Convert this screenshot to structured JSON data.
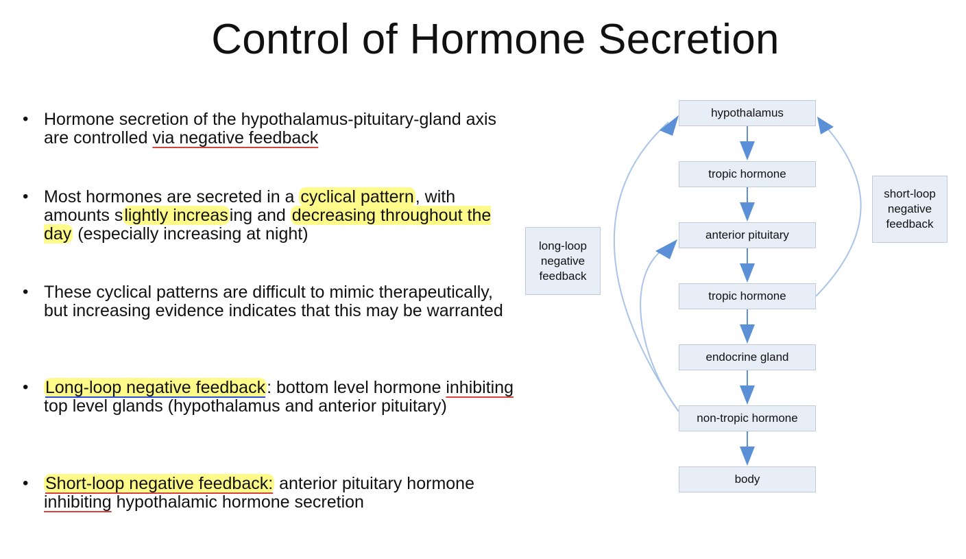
{
  "title": "Control of Hormone Secretion",
  "bullets": [
    {
      "parts": [
        {
          "text": "Hormone secretion of the hypothalamus-pituitary-gland axis are controlled "
        },
        {
          "text": "via negative feedback",
          "style": "ul-red"
        }
      ]
    },
    {
      "parts": [
        {
          "text": "Most hormones are secreted in a "
        },
        {
          "text": "cyclical pattern",
          "style": "hl"
        },
        {
          "text": ", with amounts s"
        },
        {
          "text": "lightly increas",
          "style": "hl"
        },
        {
          "text": "ing and "
        },
        {
          "text": "decreasing throughout the day",
          "style": "hl"
        },
        {
          "text": " (especially increasing at night)"
        }
      ]
    },
    {
      "parts": [
        {
          "text": "These cyclical patterns are difficult to mimic therapeutically, but increasing evidence indicates that this may be warranted"
        }
      ]
    },
    {
      "parts": [
        {
          "text": "Long-loop negative feedback",
          "style": "hl ul-blue-part"
        },
        {
          "text": ": bottom level hormone "
        },
        {
          "text": "inhibiting",
          "style": "ul-red"
        },
        {
          "text": " top level glands (hypothalamus and anterior pituitary)"
        }
      ]
    },
    {
      "parts": [
        {
          "text": "Short-loop negative feedback:",
          "style": "hl"
        },
        {
          "text": " anterior pituitary hormone "
        },
        {
          "text": "inhibiting",
          "style": "ul-red"
        },
        {
          "text": " hypothalamic hormone secretion"
        }
      ]
    }
  ],
  "diagram": {
    "nodes": [
      "hypothalamus",
      "tropic hormone",
      "anterior pituitary",
      "tropic hormone",
      "endocrine gland",
      "non-tropic hormone",
      "body"
    ],
    "long_loop_label": "long-loop negative feedback",
    "short_loop_label": "short-loop negative feedback",
    "arrow_color": "#5b8fd6",
    "curve_color": "#a9c4e6"
  }
}
